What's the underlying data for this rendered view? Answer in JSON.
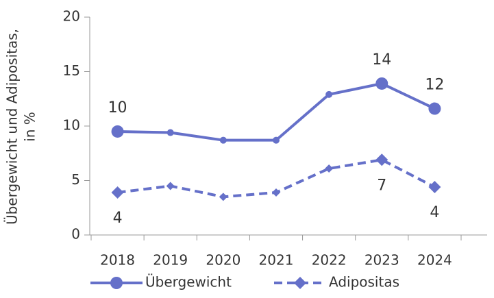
{
  "chart_data": {
    "type": "line",
    "ylabel": [
      "Übergewicht und Adipositas,",
      "in %"
    ],
    "categories": [
      "2018",
      "2019",
      "2020",
      "2021",
      "2022",
      "2023",
      "2024"
    ],
    "series": [
      {
        "name": "Übergewicht",
        "color": "#6570c9",
        "values": [
          9.5,
          9.4,
          8.7,
          8.7,
          12.9,
          13.9,
          11.6
        ],
        "value_labels": [
          "10",
          null,
          null,
          null,
          null,
          "14",
          "12"
        ],
        "dashed": false,
        "marker": "circle"
      },
      {
        "name": "Adipositas",
        "color": "#6570c9",
        "values": [
          3.9,
          4.5,
          3.5,
          3.9,
          6.1,
          6.9,
          4.4
        ],
        "value_labels": [
          "4",
          null,
          null,
          null,
          null,
          "7",
          "4"
        ],
        "dashed": true,
        "marker": "diamond"
      }
    ],
    "ylim": [
      0,
      20
    ],
    "yticks": [
      0,
      5,
      10,
      15,
      20
    ],
    "grid": false,
    "legend": "bottom"
  }
}
